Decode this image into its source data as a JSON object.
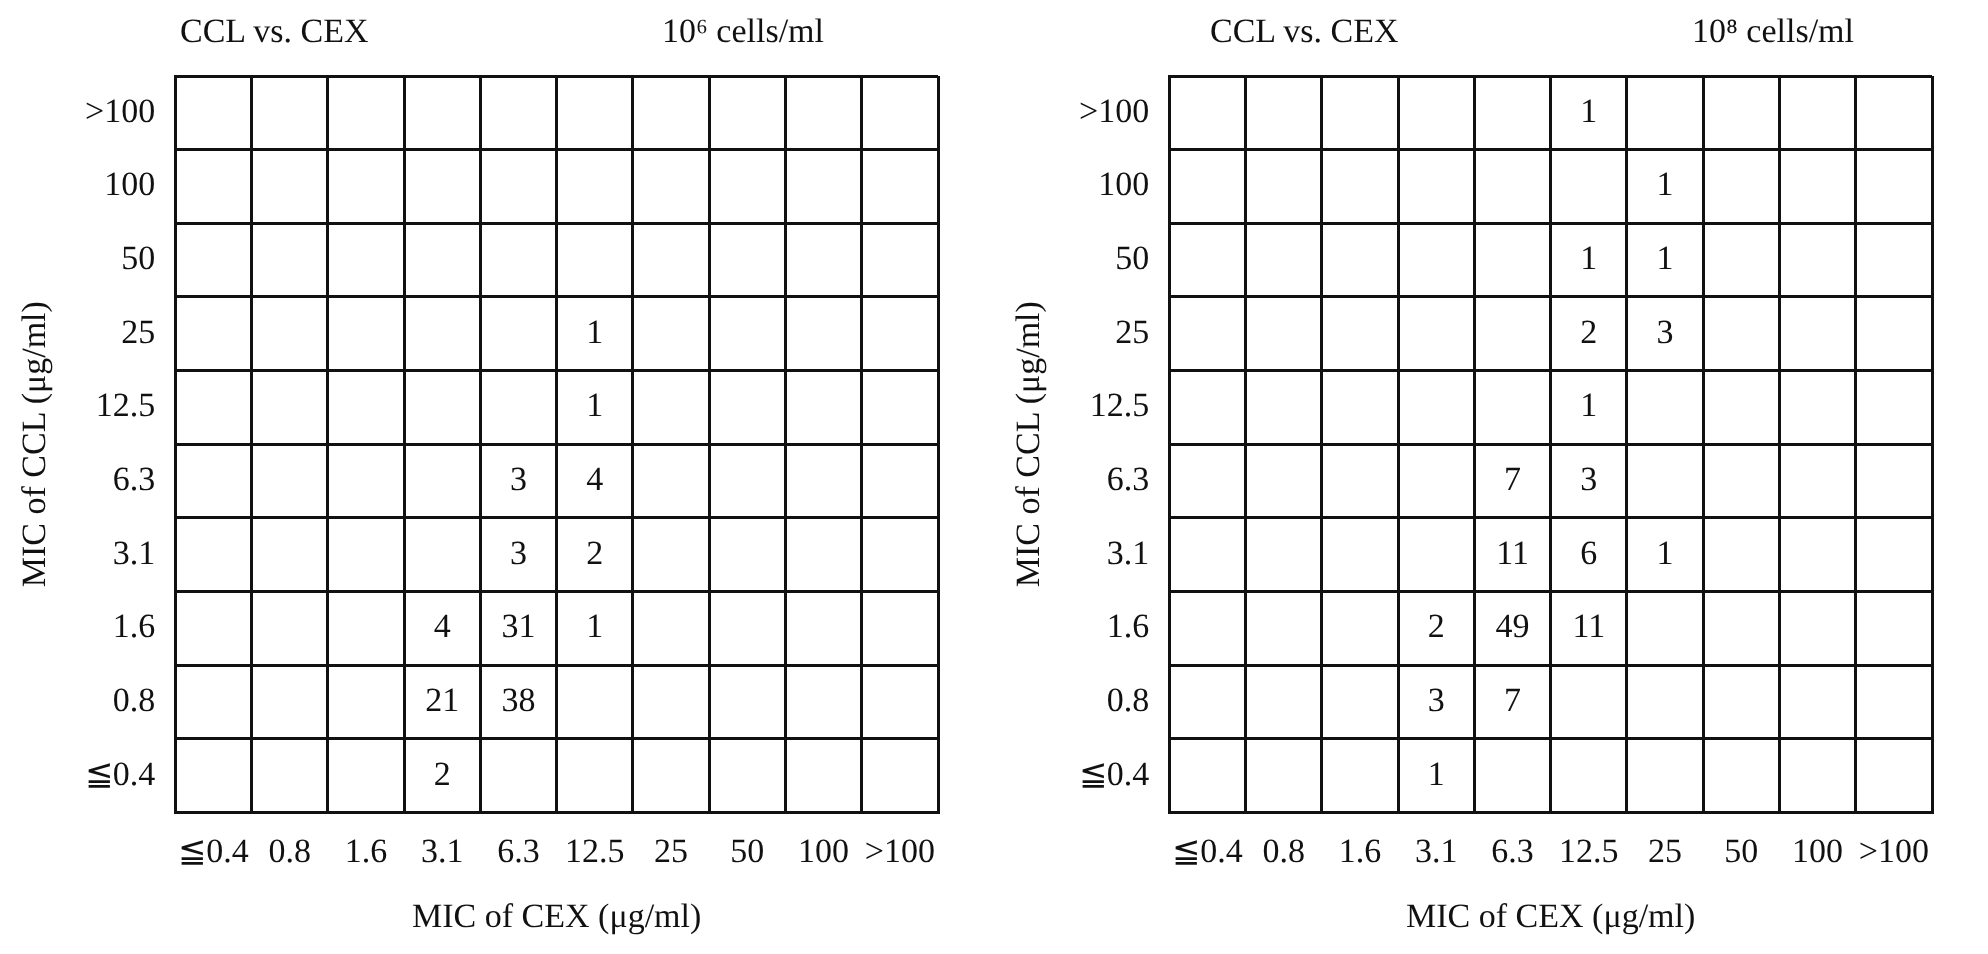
{
  "chart_data": [
    {
      "type": "heatmap",
      "title": "CCL vs. CEX",
      "subtitle": "10⁶ cells/ml",
      "xlabel": "MIC of CEX (μg/ml)",
      "ylabel": "MIC of CCL (μg/ml)",
      "categories": [
        "≦0.4",
        "0.8",
        "1.6",
        "3.1",
        "6.3",
        "12.5",
        "25",
        "50",
        "100",
        ">100"
      ],
      "y_categories": [
        ">100",
        "100",
        "50",
        "25",
        "12.5",
        "6.3",
        "3.1",
        "1.6",
        "0.8",
        "≦0.4"
      ],
      "cells": [
        [
          null,
          null,
          null,
          null,
          null,
          null,
          null,
          null,
          null,
          null
        ],
        [
          null,
          null,
          null,
          null,
          null,
          null,
          null,
          null,
          null,
          null
        ],
        [
          null,
          null,
          null,
          null,
          null,
          null,
          null,
          null,
          null,
          null
        ],
        [
          null,
          null,
          null,
          null,
          null,
          1,
          null,
          null,
          null,
          null
        ],
        [
          null,
          null,
          null,
          null,
          null,
          1,
          null,
          null,
          null,
          null
        ],
        [
          null,
          null,
          null,
          null,
          3,
          4,
          null,
          null,
          null,
          null
        ],
        [
          null,
          null,
          null,
          null,
          3,
          2,
          null,
          null,
          null,
          null
        ],
        [
          null,
          null,
          null,
          4,
          31,
          1,
          null,
          null,
          null,
          null
        ],
        [
          null,
          null,
          null,
          21,
          38,
          null,
          null,
          null,
          null,
          null
        ],
        [
          null,
          null,
          null,
          2,
          null,
          null,
          null,
          null,
          null,
          null
        ]
      ],
      "data_labels": true,
      "grid": true,
      "legend": false
    },
    {
      "type": "heatmap",
      "title": "CCL vs. CEX",
      "subtitle": "10⁸ cells/ml",
      "xlabel": "MIC of CEX (μg/ml)",
      "ylabel": "MIC of CCL (μg/ml)",
      "categories": [
        "≦0.4",
        "0.8",
        "1.6",
        "3.1",
        "6.3",
        "12.5",
        "25",
        "50",
        "100",
        ">100"
      ],
      "y_categories": [
        ">100",
        "100",
        "50",
        "25",
        "12.5",
        "6.3",
        "3.1",
        "1.6",
        "0.8",
        "≦0.4"
      ],
      "cells": [
        [
          null,
          null,
          null,
          null,
          null,
          1,
          null,
          null,
          null,
          null
        ],
        [
          null,
          null,
          null,
          null,
          null,
          null,
          1,
          null,
          null,
          null
        ],
        [
          null,
          null,
          null,
          null,
          null,
          1,
          1,
          null,
          null,
          null
        ],
        [
          null,
          null,
          null,
          null,
          null,
          2,
          3,
          null,
          null,
          null
        ],
        [
          null,
          null,
          null,
          null,
          null,
          1,
          null,
          null,
          null,
          null
        ],
        [
          null,
          null,
          null,
          null,
          7,
          3,
          null,
          null,
          null,
          null
        ],
        [
          null,
          null,
          null,
          null,
          11,
          6,
          1,
          null,
          null,
          null
        ],
        [
          null,
          null,
          null,
          2,
          49,
          11,
          null,
          null,
          null,
          null
        ],
        [
          null,
          null,
          null,
          3,
          7,
          null,
          null,
          null,
          null,
          null
        ],
        [
          null,
          null,
          null,
          1,
          null,
          null,
          null,
          null,
          null,
          null
        ]
      ],
      "data_labels": true,
      "grid": true,
      "legend": false
    }
  ]
}
